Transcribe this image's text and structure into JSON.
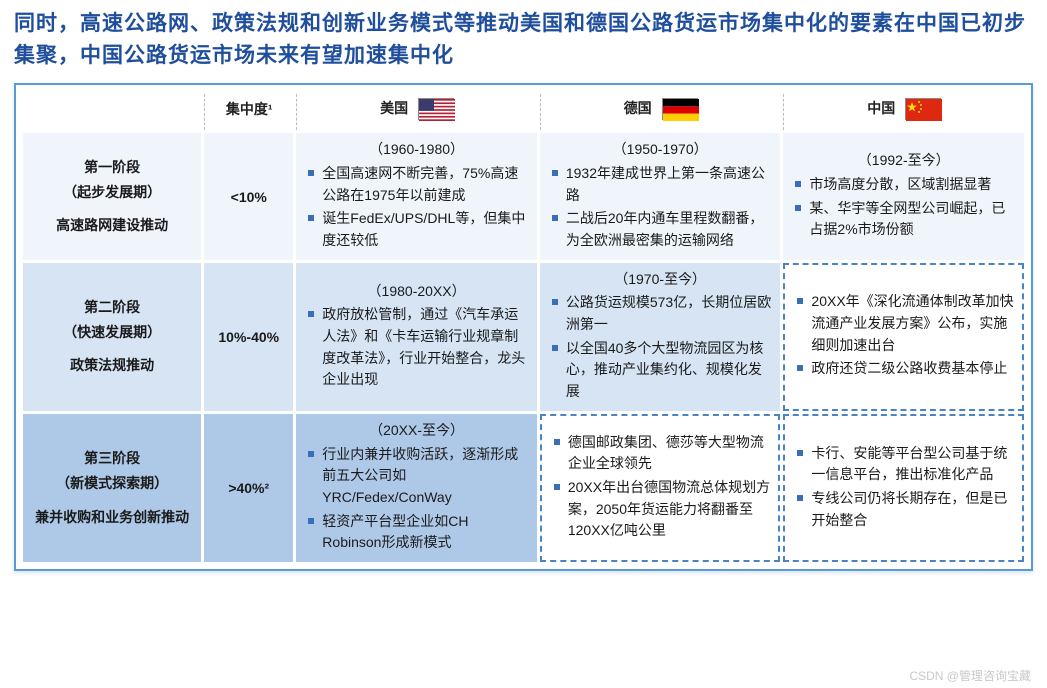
{
  "title": "同时，高速公路网、政策法规和创新业务模式等推动美国和德国公路货运市场集中化的要素在中国已初步集聚，中国公路货运市场未来有望加速集中化",
  "headers": {
    "concentration": "集中度¹",
    "us": "美国",
    "de": "德国",
    "cn": "中国"
  },
  "columnWidths": {
    "stage": "18%",
    "conc": "9%",
    "country": "24.3%"
  },
  "flags": {
    "us": {
      "type": "us"
    },
    "de": {
      "stripes": [
        "#000000",
        "#dd0000",
        "#ffce00"
      ]
    },
    "cn": {
      "bg": "#de2910",
      "star": "#ffde00"
    }
  },
  "stages": [
    {
      "name": "第一阶段",
      "sub": "（起步发展期）",
      "driver": "高速路网建设推动",
      "conc": "<10%",
      "shade": "light",
      "us": {
        "period": "（1960-1980）",
        "bullets": [
          "全国高速网不断完善，75%高速公路在1975年以前建成",
          "诞生FedEx/UPS/DHL等，但集中度还较低"
        ],
        "dashed": false
      },
      "de": {
        "period": "（1950-1970）",
        "bullets": [
          "1932年建成世界上第一条高速公路",
          "二战后20年内通车里程数翻番，为全欧洲最密集的运输网络"
        ],
        "dashed": false
      },
      "cn": {
        "period": "（1992-至今）",
        "bullets": [
          "市场高度分散，区域割据显著",
          "某、华宇等全网型公司崛起，已占据2%市场份额"
        ],
        "dashed": false
      }
    },
    {
      "name": "第二阶段",
      "sub": "（快速发展期）",
      "driver": "政策法规推动",
      "conc": "10%-40%",
      "shade": "mid",
      "us": {
        "period": "（1980-20XX）",
        "bullets": [
          "政府放松管制，通过《汽车承运人法》和《卡车运输行业规章制度改革法》，行业开始整合，龙头企业出现"
        ],
        "dashed": false
      },
      "de": {
        "period": "（1970-至今）",
        "bullets": [
          "公路货运规模573亿，长期位居欧洲第一",
          "以全国40多个大型物流园区为核心，推动产业集约化、规模化发展"
        ],
        "dashed": false
      },
      "cn": {
        "period": "",
        "bullets": [
          "20XX年《深化流通体制改革加快流通产业发展方案》公布，实施细则加速出台",
          "政府还贷二级公路收费基本停止"
        ],
        "dashed": true
      }
    },
    {
      "name": "第三阶段",
      "sub": "（新模式探索期）",
      "driver": "兼并收购和业务创新推动",
      "conc": ">40%²",
      "shade": "dark",
      "us": {
        "period": "（20XX-至今）",
        "bullets": [
          "行业内兼并收购活跃，逐渐形成前五大公司如YRC/Fedex/ConWay",
          "轻资产平台型企业如CH Robinson形成新模式"
        ],
        "dashed": false
      },
      "de": {
        "period": "",
        "bullets": [
          "德国邮政集团、德莎等大型物流企业全球领先",
          "20XX年出台德国物流总体规划方案，2050年货运能力将翻番至120XX亿吨公里"
        ],
        "dashed": true
      },
      "cn": {
        "period": "",
        "bullets": [
          "卡行、安能等平台型公司基于统一信息平台，推出标准化产品",
          "专线公司仍将长期存在，但是已开始整合"
        ],
        "dashed": true
      }
    }
  ],
  "watermark": "CSDN @管理咨询宝藏",
  "colors": {
    "titleColor": "#1f4e9c",
    "frameBorder": "#5a9bd5",
    "dashBorder": "#4a84c4",
    "bulletColor": "#3a6fb7",
    "shadeLight": "#f0f5fb",
    "shadeMid": "#d6e4f4",
    "shadeDark": "#aec9e8"
  }
}
